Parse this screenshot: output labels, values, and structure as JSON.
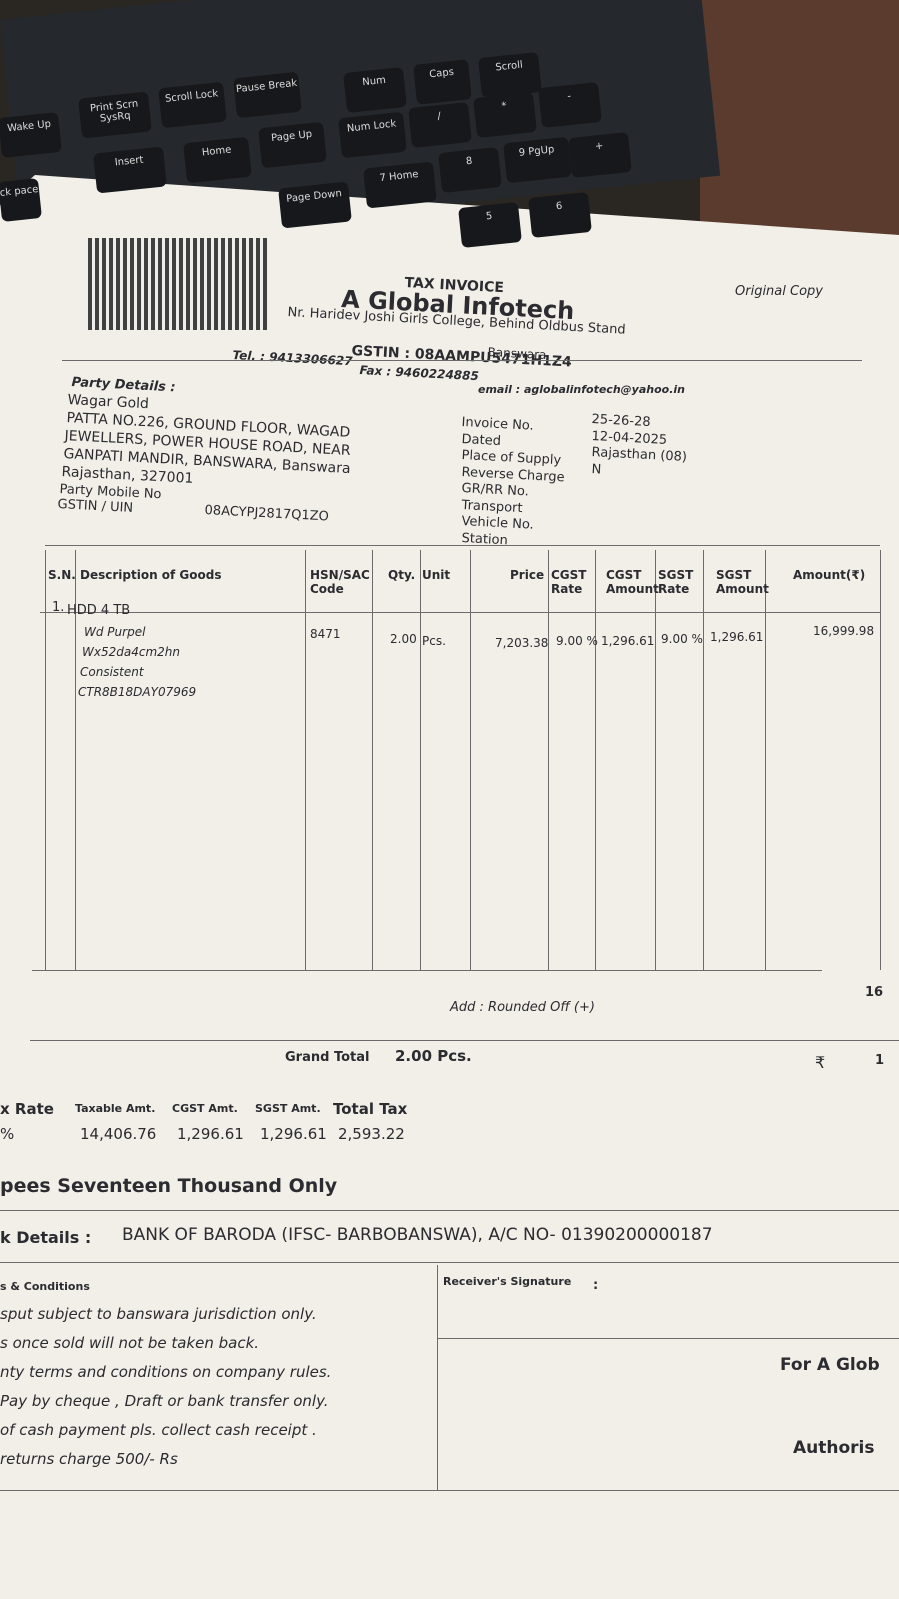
{
  "keyboard": {
    "keys": [
      "Wake Up",
      "Print Scrn SysRq",
      "Scroll Lock",
      "Pause Break",
      "Num",
      "Caps",
      "Scroll",
      "ck pace",
      "Insert",
      "Home",
      "Page Up",
      "Num Lock",
      "/",
      "*",
      "-",
      "Page Down",
      "7 Home",
      "8",
      "9 PgUp",
      "+",
      "5",
      "6"
    ]
  },
  "header": {
    "title": "TAX INVOICE",
    "copy": "Original Copy",
    "company": "A Global Infotech",
    "address": "Nr. Haridev Joshi Girls College, Behind Oldbus Stand",
    "city": "Banswara",
    "tel": "Tel. : 9413306627",
    "fax": "Fax : 9460224885",
    "gstin": "GSTIN : 08AAMPU5471H1Z4",
    "email": "email : aglobalinfotech@yahoo.in"
  },
  "party": {
    "heading": "Party Details :",
    "lines": [
      "Wagar Gold",
      "PATTA NO.226, GROUND FLOOR, WAGAD",
      "JEWELLERS, POWER HOUSE ROAD, NEAR",
      "GANPATI MANDIR, BANSWARA, Banswara",
      "Rajasthan, 327001"
    ],
    "mobile_label": "Party Mobile No",
    "gstin_label": "GSTIN / UIN",
    "gstin": "08ACYPJ2817Q1ZO"
  },
  "invoice_info": [
    {
      "label": "Invoice No.",
      "value": "25-26-28"
    },
    {
      "label": "Dated",
      "value": "12-04-2025"
    },
    {
      "label": "Place of Supply",
      "value": "Rajasthan (08)"
    },
    {
      "label": "Reverse Charge",
      "value": "N"
    },
    {
      "label": "GR/RR No."
    },
    {
      "label": "Transport"
    },
    {
      "label": "Vehicle No."
    },
    {
      "label": "Station"
    }
  ],
  "table": {
    "headers": [
      "S.N.",
      "Description of Goods",
      "HSN/SAC Code",
      "Qty.",
      "Unit",
      "Price",
      "CGST Rate",
      "CGST Amount",
      "SGST Rate",
      "SGST Amount",
      "Amount(₹)"
    ],
    "rows": [
      {
        "sn": "1.",
        "item": "HDD 4 TB",
        "details": [
          "Wd Purpel",
          "Wx52da4cm2hn",
          "Consistent",
          "CTR8B18DAY07969"
        ],
        "hsn": "8471",
        "qty": "2.00",
        "unit": "Pcs.",
        "price": "7,203.38",
        "cgst_rate": "9.00 %",
        "cgst_amount": "1,296.61",
        "sgst_rate": "9.00 %",
        "sgst_amount": "1,296.61",
        "amount": "16,999.98"
      }
    ]
  },
  "totals": {
    "rounded_label": "Add : Rounded Off (+)",
    "subtotal_partial": "16",
    "grand_total_label": "Grand Total",
    "grand_total_qty": "2.00 Pcs.",
    "currency": "₹",
    "grand_total_partial": "1"
  },
  "tax_summary": {
    "headers": [
      "x Rate",
      "Taxable Amt.",
      "CGST Amt.",
      "SGST Amt.",
      "Total Tax"
    ],
    "values": [
      "%",
      "14,406.76",
      "1,296.61",
      "1,296.61",
      "2,593.22"
    ]
  },
  "amount_words": "pees Seventeen Thousand Only",
  "bank": {
    "label": "k Details :",
    "details": "BANK OF BARODA (IFSC- BARBOBANSWA), A/C NO- 01390200000187"
  },
  "terms": {
    "heading": "s & Conditions",
    "lines": [
      "sput subject to banswara jurisdiction only.",
      "s once sold will not be taken back.",
      "nty terms and conditions on company rules.",
      "Pay by cheque , Draft or bank transfer only.",
      "of cash payment pls. collect cash receipt .",
      "returns charge 500/- Rs"
    ]
  },
  "signature": {
    "receiver_label": "Receiver's Signature",
    "colon": ":",
    "for_company": "For A Glob",
    "authorised": "Authoris"
  }
}
